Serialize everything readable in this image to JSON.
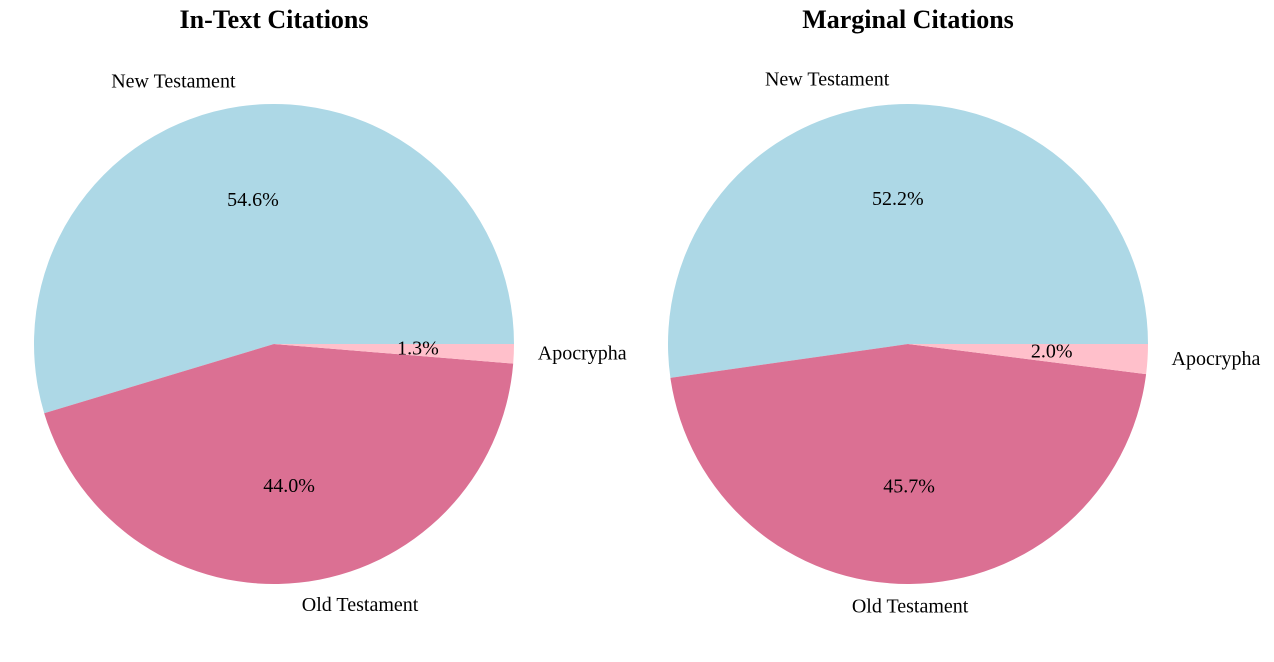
{
  "chart_data": [
    {
      "type": "pie",
      "title": "In-Text Citations",
      "categories": [
        "New Testament",
        "Old Testament",
        "Apocrypha"
      ],
      "values": [
        54.6,
        44.0,
        1.3
      ],
      "percent_labels": [
        "54.6%",
        "44.0%",
        "1.3%"
      ],
      "colors": [
        "#add8e6",
        "#db7093",
        "#ffc0cb"
      ],
      "start_angle_deg": 0,
      "direction": "counterclockwise"
    },
    {
      "type": "pie",
      "title": "Marginal Citations",
      "categories": [
        "New Testament",
        "Old Testament",
        "Apocrypha"
      ],
      "values": [
        52.2,
        45.7,
        2.0
      ],
      "percent_labels": [
        "52.2%",
        "45.7%",
        "2.0%"
      ],
      "colors": [
        "#add8e6",
        "#db7093",
        "#ffc0cb"
      ],
      "start_angle_deg": 0,
      "direction": "counterclockwise"
    }
  ]
}
